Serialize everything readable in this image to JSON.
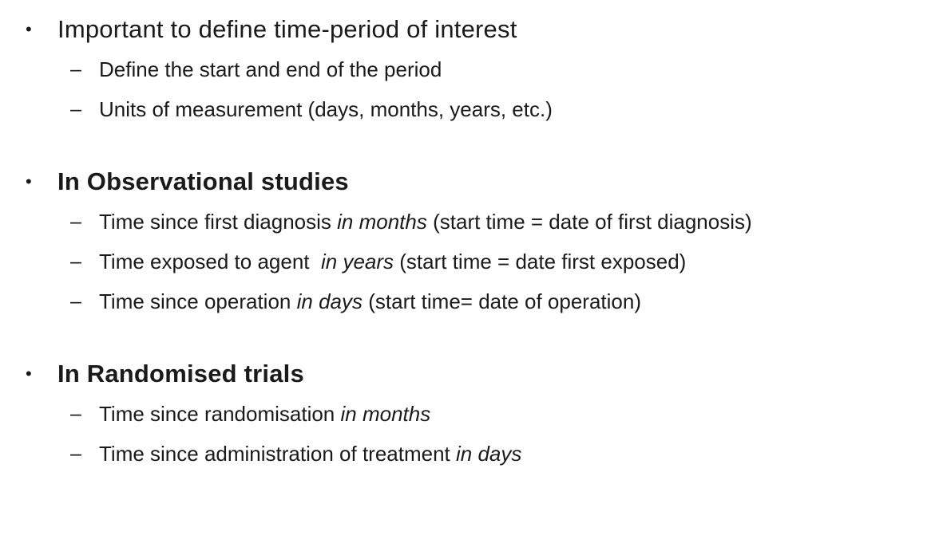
{
  "slide": {
    "background_color": "#ffffff",
    "text_color": "#1a1a1a",
    "bullet_char": "•",
    "dash_char": "–",
    "sections": [
      {
        "title": {
          "text": "Important to define time-period of interest",
          "bold": false
        },
        "items": [
          {
            "lead": "Define the start and end of the period",
            "italic": "",
            "tail": ""
          },
          {
            "lead": "Units of measurement (days, months, years, etc.)",
            "italic": "",
            "tail": ""
          }
        ]
      },
      {
        "title": {
          "text": "In Observational studies",
          "bold": true
        },
        "items": [
          {
            "lead": "Time since first diagnosis ",
            "italic": "in months",
            "tail": " (start time = date of first diagnosis)"
          },
          {
            "lead": "Time exposed to agent  ",
            "italic": "in years",
            "tail": " (start time = date first exposed)"
          },
          {
            "lead": "Time since operation ",
            "italic": "in days",
            "tail": " (start time= date of operation)"
          }
        ]
      },
      {
        "title": {
          "text": "In Randomised trials",
          "bold": true
        },
        "items": [
          {
            "lead": "Time since randomisation ",
            "italic": "in months",
            "tail": ""
          },
          {
            "lead": "Time since administration of treatment ",
            "italic": "in days",
            "tail": ""
          }
        ]
      }
    ]
  }
}
